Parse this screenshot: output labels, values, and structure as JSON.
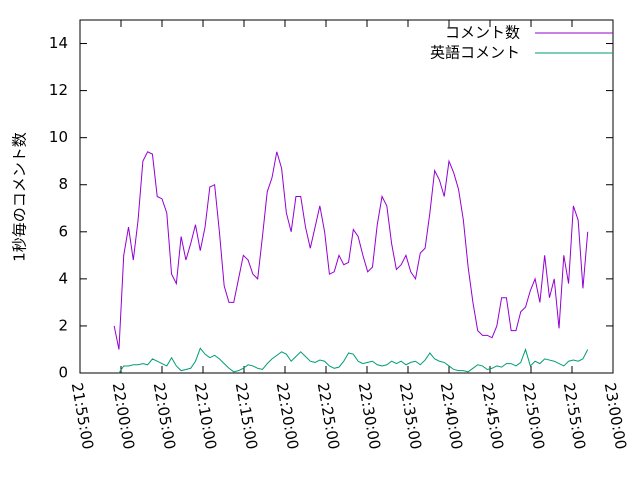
{
  "chart_data": {
    "type": "line",
    "ylabel": "1秒毎のコメント数",
    "x": [
      "21:59:10",
      "21:59:45",
      "22:00:20",
      "22:00:55",
      "22:01:30",
      "22:02:05",
      "22:02:40",
      "22:03:15",
      "22:03:50",
      "22:04:25",
      "22:05:00",
      "22:05:35",
      "22:06:10",
      "22:06:45",
      "22:07:20",
      "22:07:55",
      "22:08:30",
      "22:09:05",
      "22:09:40",
      "22:10:15",
      "22:10:50",
      "22:11:25",
      "22:12:00",
      "22:12:35",
      "22:13:10",
      "22:13:45",
      "22:14:20",
      "22:14:55",
      "22:15:30",
      "22:16:05",
      "22:16:40",
      "22:17:15",
      "22:17:50",
      "22:18:25",
      "22:19:00",
      "22:19:35",
      "22:20:10",
      "22:20:45",
      "22:21:20",
      "22:21:55",
      "22:22:30",
      "22:23:05",
      "22:23:40",
      "22:24:15",
      "22:24:50",
      "22:25:25",
      "22:26:00",
      "22:26:35",
      "22:27:10",
      "22:27:45",
      "22:28:20",
      "22:28:55",
      "22:29:30",
      "22:30:05",
      "22:30:40",
      "22:31:15",
      "22:31:50",
      "22:32:25",
      "22:33:00",
      "22:33:35",
      "22:34:10",
      "22:34:45",
      "22:35:20",
      "22:35:55",
      "22:36:30",
      "22:37:05",
      "22:37:40",
      "22:38:15",
      "22:38:50",
      "22:39:25",
      "22:40:00",
      "22:40:35",
      "22:41:10",
      "22:41:45",
      "22:42:20",
      "22:42:55",
      "22:43:30",
      "22:44:05",
      "22:44:40",
      "22:45:15",
      "22:45:50",
      "22:46:25",
      "22:47:00",
      "22:47:35",
      "22:48:10",
      "22:48:45",
      "22:49:20",
      "22:49:55",
      "22:50:30",
      "22:51:05",
      "22:51:40",
      "22:52:15",
      "22:52:50",
      "22:53:25",
      "22:54:00",
      "22:54:35",
      "22:55:10",
      "22:55:45",
      "22:56:20",
      "22:56:55"
    ],
    "series": [
      {
        "name": "コメント数",
        "color": "#9400d3",
        "values": [
          2.0,
          1.0,
          5.0,
          6.2,
          4.8,
          6.5,
          9.0,
          9.4,
          9.3,
          7.5,
          7.4,
          6.8,
          4.2,
          3.8,
          5.8,
          4.8,
          5.5,
          6.3,
          5.2,
          6.2,
          7.9,
          8.0,
          6.0,
          3.7,
          3.0,
          3.0,
          4.0,
          5.0,
          4.8,
          4.2,
          4.0,
          5.8,
          7.7,
          8.3,
          9.4,
          8.7,
          6.8,
          6.0,
          7.5,
          7.5,
          6.2,
          5.3,
          6.2,
          7.1,
          6.0,
          4.2,
          4.3,
          5.0,
          4.6,
          4.7,
          6.1,
          5.8,
          5.0,
          4.3,
          4.5,
          6.3,
          7.5,
          7.1,
          5.5,
          4.4,
          4.6,
          5.0,
          4.3,
          4.0,
          5.1,
          5.3,
          6.8,
          8.6,
          8.2,
          7.5,
          9.0,
          8.5,
          7.8,
          6.5,
          4.5,
          3.0,
          1.8,
          1.6,
          1.6,
          1.5,
          2.0,
          3.2,
          3.2,
          1.8,
          1.8,
          2.6,
          2.8,
          3.5,
          4.0,
          3.0,
          5.0,
          3.2,
          4.0,
          1.9,
          5.0,
          3.8,
          7.1,
          6.5,
          3.6,
          6.0
        ]
      },
      {
        "name": "英語コメント",
        "color": "#009e73",
        "values": [
          null,
          0.0,
          0.3,
          0.3,
          0.35,
          0.35,
          0.4,
          0.35,
          0.6,
          0.5,
          0.4,
          0.3,
          0.65,
          0.3,
          0.1,
          0.15,
          0.2,
          0.5,
          1.05,
          0.8,
          0.65,
          0.75,
          0.6,
          0.4,
          0.2,
          0.05,
          0.1,
          0.2,
          0.35,
          0.3,
          0.2,
          0.15,
          0.4,
          0.6,
          0.75,
          0.9,
          0.8,
          0.5,
          0.7,
          0.9,
          0.7,
          0.5,
          0.45,
          0.55,
          0.5,
          0.3,
          0.2,
          0.25,
          0.5,
          0.85,
          0.8,
          0.5,
          0.4,
          0.45,
          0.5,
          0.35,
          0.3,
          0.35,
          0.5,
          0.4,
          0.5,
          0.35,
          0.45,
          0.5,
          0.35,
          0.55,
          0.85,
          0.6,
          0.5,
          0.45,
          0.3,
          0.15,
          0.1,
          0.1,
          0.05,
          0.2,
          0.35,
          0.3,
          0.15,
          0.2,
          0.3,
          0.25,
          0.4,
          0.4,
          0.3,
          0.45,
          1.0,
          0.3,
          0.5,
          0.4,
          0.6,
          0.55,
          0.5,
          0.4,
          0.3,
          0.5,
          0.55,
          0.5,
          0.6,
          1.0
        ]
      }
    ],
    "xlim": [
      "21:55:00",
      "23:00:00"
    ],
    "xticks": [
      "21:55:00",
      "22:00:00",
      "22:05:00",
      "22:10:00",
      "22:15:00",
      "22:20:00",
      "22:25:00",
      "22:30:00",
      "22:35:00",
      "22:40:00",
      "22:45:00",
      "22:50:00",
      "22:55:00",
      "23:00:00"
    ],
    "ylim": [
      0,
      15
    ],
    "yticks": [
      0,
      2,
      4,
      6,
      8,
      10,
      12,
      14
    ],
    "legend": "top-right"
  }
}
